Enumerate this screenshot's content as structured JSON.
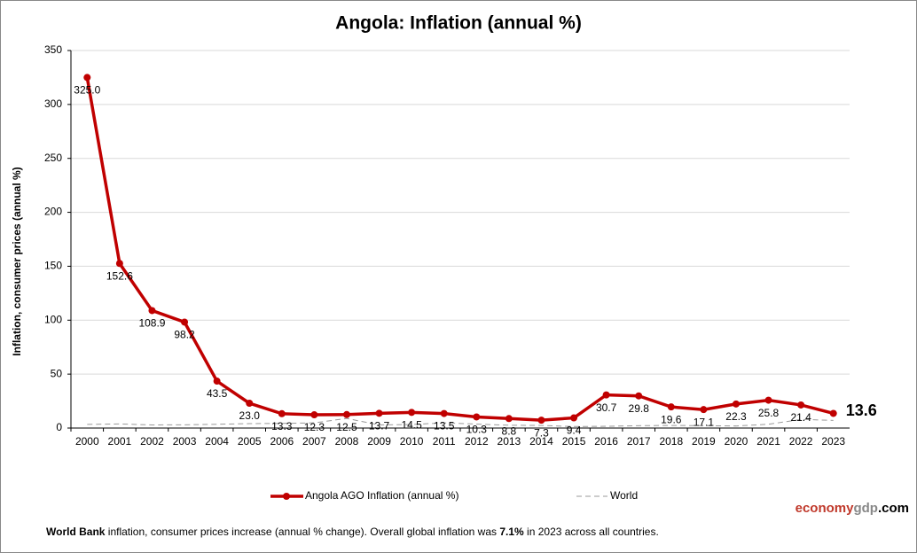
{
  "chart_data": {
    "type": "line",
    "title": "Angola: Inflation (annual %)",
    "y_label": "Inflation, consumer prices (annual %)",
    "categories": [
      "2000",
      "2001",
      "2002",
      "2003",
      "2004",
      "2005",
      "2006",
      "2007",
      "2008",
      "2009",
      "2010",
      "2011",
      "2012",
      "2013",
      "2014",
      "2015",
      "2016",
      "2017",
      "2018",
      "2019",
      "2020",
      "2021",
      "2022",
      "2023"
    ],
    "series": [
      {
        "name": "Angola AGO Inflation (annual %)",
        "color": "#c00000",
        "values": [
          325.0,
          152.6,
          108.9,
          98.2,
          43.5,
          23.0,
          13.3,
          12.3,
          12.5,
          13.7,
          14.5,
          13.5,
          10.3,
          8.8,
          7.3,
          9.4,
          30.7,
          29.8,
          19.6,
          17.1,
          22.3,
          25.8,
          21.4,
          13.6
        ],
        "value_labels": [
          "325.0",
          "152.6",
          "108.9",
          "98.2",
          "43.5",
          "23.0",
          "13.3",
          "12.3",
          "12.5",
          "13.7",
          "14.5",
          "13.5",
          "10.3",
          "8.8",
          "7.3",
          "9.4",
          "30.7",
          "29.8",
          "19.6",
          "17.1",
          "22.3",
          "25.8",
          "21.4",
          "13.6"
        ]
      },
      {
        "name": "World",
        "color": "#999999",
        "values": [
          3.4,
          3.8,
          2.9,
          3.0,
          3.5,
          4.1,
          4.3,
          4.8,
          8.9,
          2.9,
          3.3,
          4.8,
          3.7,
          2.6,
          2.4,
          1.4,
          1.6,
          2.2,
          2.4,
          2.2,
          1.9,
          3.5,
          8.0,
          7.1
        ]
      }
    ],
    "ylim": [
      0,
      350
    ],
    "yticks": [
      0,
      50,
      100,
      150,
      200,
      250,
      300,
      350
    ],
    "grid": true,
    "brand": {
      "part1": "economy",
      "part2": "gdp",
      "part3": ".com"
    },
    "footnote": {
      "source": "World Bank",
      "text1": " inflation, consumer prices increase (annual % change).   Overall  global  inflation was ",
      "highlight": "7.1%",
      "text2": " in 2023 across all countries."
    }
  }
}
